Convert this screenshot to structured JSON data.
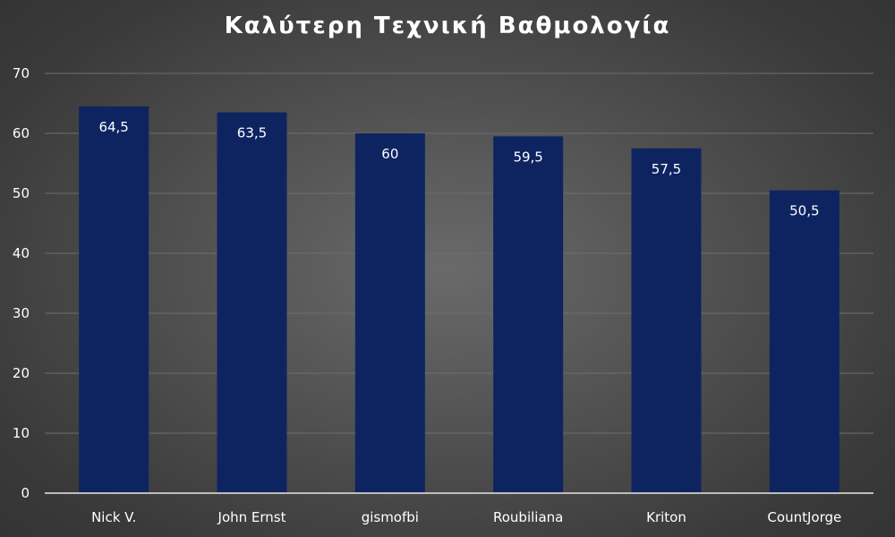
{
  "chart_data": {
    "type": "bar",
    "title": "Καλύτερη Τεχνική Βαθμολογία",
    "categories": [
      "Nick V.",
      "John Ernst",
      "gismofbi",
      "Roubiliana",
      "Kriton",
      "CountJorge"
    ],
    "values": [
      64.5,
      63.5,
      60,
      59.5,
      57.5,
      50.5
    ],
    "value_labels": [
      "64,5",
      "63,5",
      "60",
      "59,5",
      "57,5",
      "50,5"
    ],
    "y_ticks": [
      "0",
      "10",
      "20",
      "30",
      "40",
      "50",
      "60",
      "70"
    ],
    "ylim": [
      0,
      70
    ],
    "xlabel": "",
    "ylabel": "",
    "grid": true,
    "legend": "none",
    "colors": {
      "bar": "#0e2461",
      "background": "#4f4f4f",
      "text": "#ffffff",
      "grid": "#6e6e6e"
    }
  }
}
